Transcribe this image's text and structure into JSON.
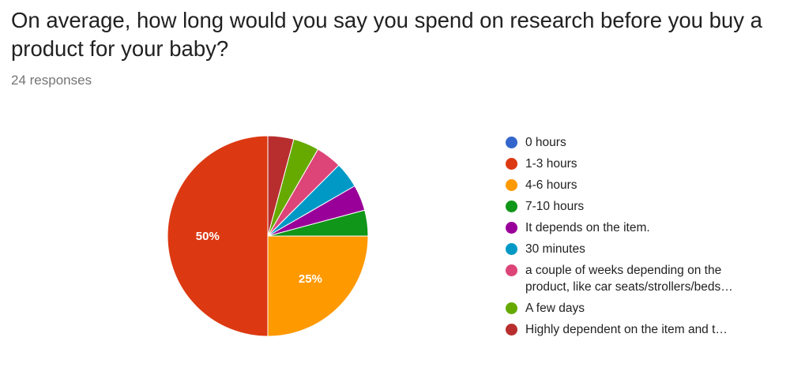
{
  "header": {
    "question": "On average, how long would you say you spend on research before you buy a product for your baby?",
    "responses": "24 responses"
  },
  "chart_data": {
    "type": "pie",
    "title": "",
    "start_angle_deg": 90,
    "direction": "counterclockwise",
    "legend_position": "right",
    "slices": [
      {
        "label": "0 hours",
        "count": 0,
        "percent": 0,
        "color": "#3366cc",
        "data_label": ""
      },
      {
        "label": "1-3 hours",
        "count": 12,
        "percent": 50,
        "color": "#dc3912",
        "data_label": "50%"
      },
      {
        "label": "4-6 hours",
        "count": 6,
        "percent": 25,
        "color": "#ff9900",
        "data_label": "25%"
      },
      {
        "label": "7-10 hours",
        "count": 1,
        "percent": 4.2,
        "color": "#109618",
        "data_label": ""
      },
      {
        "label": "It depends on the item.",
        "count": 1,
        "percent": 4.2,
        "color": "#990099",
        "data_label": ""
      },
      {
        "label": "30 minutes",
        "count": 1,
        "percent": 4.2,
        "color": "#0099c6",
        "data_label": ""
      },
      {
        "label": "a couple of weeks depending on the\nproduct, like car seats/strollers/beds…",
        "count": 1,
        "percent": 4.2,
        "color": "#dd4477",
        "data_label": ""
      },
      {
        "label": "A few days",
        "count": 1,
        "percent": 4.2,
        "color": "#66aa00",
        "data_label": ""
      },
      {
        "label": "Highly dependent on the item and t…",
        "count": 1,
        "percent": 4.2,
        "color": "#b82e2e",
        "data_label": ""
      }
    ]
  }
}
